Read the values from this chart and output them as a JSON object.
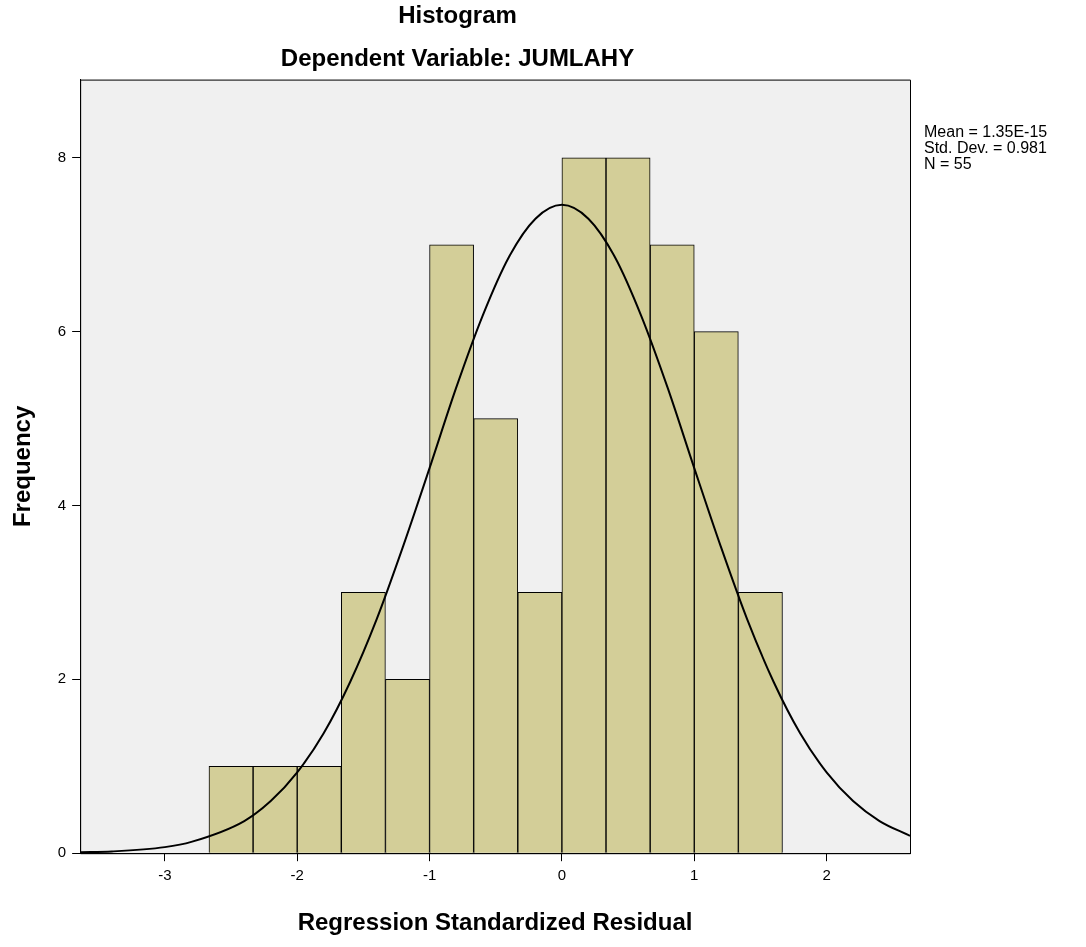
{
  "chart_data": {
    "type": "histogram",
    "title": "Histogram",
    "subtitle": "Dependent Variable: JUMLAHY",
    "xlabel": "Regression Standardized Residual",
    "ylabel": "Frequency",
    "bins": [
      -2.667,
      -2.333,
      -2,
      -1.667,
      -1.333,
      -1,
      -0.667,
      -0.333,
      0,
      0.333,
      0.667,
      1,
      1.333,
      1.667
    ],
    "values": [
      1,
      1,
      1,
      3,
      2,
      7,
      5,
      3,
      8,
      8,
      7,
      6,
      3
    ],
    "color": "#d3ce98",
    "series": [
      {
        "type": "line",
        "color": "#000000",
        "x": [
          -3.64,
          -3.4,
          -3.0,
          -2.8,
          -2.4,
          -2.2,
          -2.0,
          -1.8,
          -1.6,
          -1.4,
          -1.2,
          -1.0,
          -0.8,
          -0.6,
          -0.4,
          -0.2,
          0,
          0.2,
          0.4,
          0.6,
          0.8,
          1.0,
          1.2,
          1.4,
          1.6,
          1.8,
          2.0,
          2.2,
          2.4,
          2.63
        ],
        "values": [
          0.01,
          0.02,
          0.07,
          0.13,
          0.37,
          0.6,
          0.93,
          1.38,
          1.97,
          2.69,
          3.53,
          4.43,
          5.35,
          6.18,
          6.86,
          7.3,
          7.46,
          7.3,
          6.86,
          6.18,
          5.35,
          4.43,
          3.53,
          2.69,
          1.97,
          1.38,
          0.93,
          0.6,
          0.37,
          0.2
        ]
      }
    ],
    "xlim": [
      -3.64,
      2.63
    ],
    "xticks": [
      -3,
      -2,
      -1,
      0,
      1,
      2
    ],
    "ylim": [
      0,
      8.9
    ],
    "yticks": [
      0,
      2,
      4,
      6,
      8
    ],
    "grid": false,
    "legend": false,
    "marker": "none",
    "line_style": "solid",
    "annotations": [
      "Mean = 1.35E-15",
      "Std. Dev. = 0.981",
      "N = 55"
    ]
  }
}
